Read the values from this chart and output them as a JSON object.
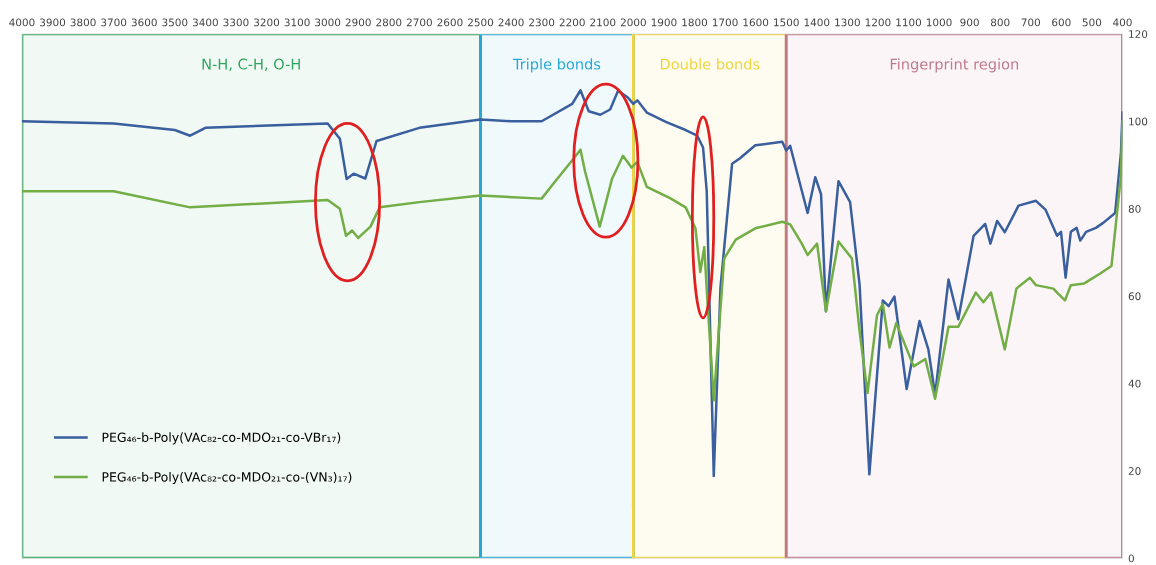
{
  "chart_data": {
    "type": "line",
    "xlim": [
      4000,
      400
    ],
    "xticks": [
      4000,
      3900,
      3800,
      3700,
      3600,
      3500,
      3400,
      3300,
      3200,
      3100,
      3000,
      2900,
      2800,
      2700,
      2600,
      2500,
      2400,
      2300,
      2200,
      2100,
      2000,
      1900,
      1800,
      1700,
      1600,
      1500,
      1400,
      1300,
      1200,
      1100,
      1000,
      900,
      800,
      700,
      600,
      500,
      400
    ],
    "ylim": [
      0,
      120
    ],
    "yticks": [
      0,
      20,
      40,
      60,
      80,
      100,
      120
    ],
    "grid": false,
    "legend": "bottom left",
    "line_style": "solid",
    "marker": "none",
    "bands": [
      {
        "axis": "x",
        "from": 4000,
        "to": 2500,
        "label": "N-H, C-H, O-H",
        "color": "#2ea55e"
      },
      {
        "axis": "x",
        "from": 2500,
        "to": 2000,
        "label": "Triple bonds",
        "color": "#27a9d8"
      },
      {
        "axis": "x",
        "from": 2000,
        "to": 1500,
        "label": "Double bonds",
        "color": "#f0d43a"
      },
      {
        "axis": "x",
        "from": 1500,
        "to": 400,
        "label": "Fingerprint region",
        "color": "#c0788c"
      }
    ],
    "series": [
      {
        "name": "PEG₄₆-b-Poly(VAc₈₂-co-MDO₂₁-co-VBr₁₇)",
        "color": "#3a5f9e",
        "x": [
          4000,
          3700,
          3500,
          3450,
          3400,
          3000,
          2960,
          2938,
          2915,
          2877,
          2840,
          2700,
          2500,
          2400,
          2300,
          2200,
          2173,
          2146,
          2108,
          2076,
          2050,
          2019,
          2000,
          1987,
          1956,
          1892,
          1829,
          1791,
          1772,
          1760,
          1737,
          1715,
          1677,
          1652,
          1601,
          1513,
          1500,
          1487,
          1462,
          1430,
          1405,
          1386,
          1370,
          1329,
          1291,
          1260,
          1228,
          1184,
          1165,
          1146,
          1106,
          1064,
          1035,
          1013,
          969,
          937,
          887,
          849,
          832,
          810,
          785,
          740,
          683,
          652,
          614,
          601,
          586,
          569,
          550,
          538,
          519,
          487,
          462,
          424,
          405,
          400
        ],
        "values": [
          100,
          99.5,
          98,
          96.7,
          98.5,
          99.5,
          96,
          86.8,
          88,
          86.9,
          95.5,
          98.5,
          100.4,
          100,
          100,
          104,
          107.1,
          102.3,
          101.5,
          102.7,
          107,
          105.5,
          104,
          104.8,
          102,
          99.8,
          98,
          96.7,
          94,
          84,
          18.8,
          62,
          90.3,
          91.5,
          94.5,
          95.3,
          93.3,
          94.4,
          87.6,
          79,
          87.2,
          83.3,
          56.5,
          86.3,
          81.5,
          62.6,
          19.2,
          59,
          57.7,
          59.9,
          38.7,
          54.3,
          47.8,
          37.4,
          63.8,
          54.7,
          73.8,
          76.5,
          72,
          77.2,
          74.6,
          80.7,
          81.8,
          79.8,
          73.8,
          74.7,
          64.2,
          74.7,
          75.6,
          72.7,
          74.7,
          75.6,
          76.8,
          79,
          92.8,
          102
        ]
      },
      {
        "name": "PEG₄₆-b-Poly(VAc₈₂-co-MDO₂₁-co-(VN₃)₁₇)",
        "color": "#72ad45",
        "x": [
          4000,
          3700,
          3450,
          3000,
          2960,
          2940,
          2920,
          2900,
          2860,
          2830,
          2700,
          2500,
          2300,
          2260,
          2209,
          2173,
          2158,
          2110,
          2070,
          2034,
          2006,
          1987,
          1956,
          1880,
          1829,
          1797,
          1781,
          1768,
          1760,
          1737,
          1703,
          1665,
          1601,
          1513,
          1487,
          1449,
          1430,
          1399,
          1370,
          1329,
          1285,
          1260,
          1234,
          1203,
          1184,
          1162,
          1140,
          1083,
          1045,
          1013,
          969,
          937,
          880,
          855,
          830,
          785,
          747,
          703,
          683,
          626,
          614,
          588,
          569,
          525,
          474,
          436,
          405,
          400
        ],
        "values": [
          84,
          84,
          80.3,
          82,
          80,
          73.8,
          75,
          73.3,
          75.9,
          80.3,
          81.5,
          83,
          82.3,
          85.9,
          90.3,
          93.5,
          88.5,
          75.9,
          86.8,
          92.1,
          89.4,
          90.7,
          85,
          82.4,
          80.3,
          75.5,
          65.5,
          71.2,
          61.6,
          36.1,
          68.6,
          72.9,
          75.5,
          77,
          76.4,
          72,
          69.4,
          72,
          56.5,
          72.5,
          68.6,
          52,
          37.8,
          55.6,
          58.2,
          48.2,
          53.8,
          43.9,
          45.6,
          36.5,
          53,
          53,
          60.8,
          58.6,
          60.8,
          47.8,
          61.7,
          64.2,
          62.5,
          61.7,
          60.8,
          59,
          62.5,
          62.9,
          65.1,
          66.9,
          87.6,
          100
        ]
      }
    ]
  }
}
